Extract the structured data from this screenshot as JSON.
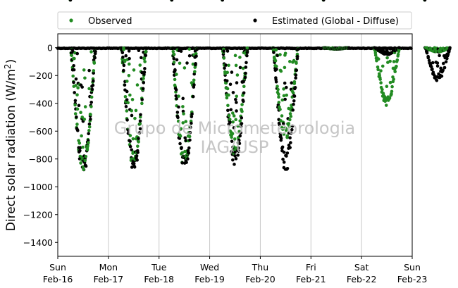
{
  "colors": {
    "observed": "#228B22",
    "estimated": "#000000",
    "grid": "#c8c8c8",
    "watermark": "#bdbdbd"
  },
  "legend": {
    "placement": "top, outside plot, two columns",
    "observed_label": "Observed",
    "estimated_label": "Estimated (Global - Diffuse)"
  },
  "watermark": {
    "line1": "Grupo de Micrometeorologia",
    "line2": "IAG/USP"
  },
  "chart_data": {
    "type": "scatter",
    "ylabel": "Direct solar radiation (W/m²)",
    "ylabel_plain": "Direct solar radiation (W/m",
    "ylabel_sup": "2",
    "ylabel_tail": ")",
    "ylim": [
      -1500,
      100
    ],
    "yticks": [
      0,
      -200,
      -400,
      -600,
      -800,
      -1000,
      -1200,
      -1400
    ],
    "xlim_days": [
      "Feb-16",
      "Feb-23"
    ],
    "xticks": [
      {
        "weekday": "Sun",
        "date": "Feb-16"
      },
      {
        "weekday": "Mon",
        "date": "Feb-17"
      },
      {
        "weekday": "Tue",
        "date": "Feb-18"
      },
      {
        "weekday": "Wed",
        "date": "Feb-19"
      },
      {
        "weekday": "Thu",
        "date": "Feb-20"
      },
      {
        "weekday": "Fri",
        "date": "Feb-21"
      },
      {
        "weekday": "Sat",
        "date": "Feb-22"
      },
      {
        "weekday": "Sun",
        "date": "Feb-23"
      }
    ],
    "vertical_grid": true,
    "horizontal_grid": false,
    "days": [
      {
        "date": "Feb-16",
        "peak_observed": -910,
        "peak_estimated": -915
      },
      {
        "date": "Feb-17",
        "peak_observed": -870,
        "peak_estimated": -900
      },
      {
        "date": "Feb-18",
        "peak_observed": -870,
        "peak_estimated": -910
      },
      {
        "date": "Feb-19",
        "peak_observed": -780,
        "peak_estimated": -860
      },
      {
        "date": "Feb-20",
        "peak_observed": -660,
        "peak_estimated": -900
      },
      {
        "date": "Feb-21",
        "peak_observed": -10,
        "peak_estimated": -10
      },
      {
        "date": "Feb-22",
        "peak_observed": -420,
        "peak_estimated": -50
      },
      {
        "date": "Feb-23",
        "peak_observed": -30,
        "peak_estimated": -240
      }
    ],
    "series": [
      {
        "name": "Observed",
        "color": "#228B22"
      },
      {
        "name": "Estimated (Global - Diffuse)",
        "color": "#000000"
      }
    ]
  }
}
